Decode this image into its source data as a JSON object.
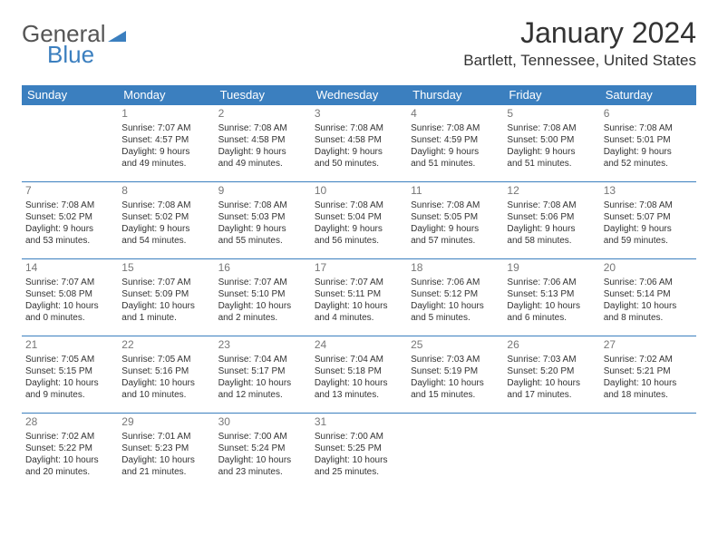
{
  "brand": {
    "part1": "General",
    "part2": "Blue",
    "tri_color": "#3b7fbf"
  },
  "colors": {
    "header_bg": "#3b7fbf",
    "header_fg": "#ffffff",
    "rule": "#3b7fbf",
    "text": "#333333",
    "muted": "#777777"
  },
  "title": "January 2024",
  "location": "Bartlett, Tennessee, United States",
  "weekdays": [
    "Sunday",
    "Monday",
    "Tuesday",
    "Wednesday",
    "Thursday",
    "Friday",
    "Saturday"
  ],
  "layout": {
    "first_weekday_offset": 1,
    "cols": 7,
    "rows": 5
  },
  "days": [
    {
      "n": "1",
      "sr": "Sunrise: 7:07 AM",
      "ss": "Sunset: 4:57 PM",
      "d1": "Daylight: 9 hours",
      "d2": "and 49 minutes."
    },
    {
      "n": "2",
      "sr": "Sunrise: 7:08 AM",
      "ss": "Sunset: 4:58 PM",
      "d1": "Daylight: 9 hours",
      "d2": "and 49 minutes."
    },
    {
      "n": "3",
      "sr": "Sunrise: 7:08 AM",
      "ss": "Sunset: 4:58 PM",
      "d1": "Daylight: 9 hours",
      "d2": "and 50 minutes."
    },
    {
      "n": "4",
      "sr": "Sunrise: 7:08 AM",
      "ss": "Sunset: 4:59 PM",
      "d1": "Daylight: 9 hours",
      "d2": "and 51 minutes."
    },
    {
      "n": "5",
      "sr": "Sunrise: 7:08 AM",
      "ss": "Sunset: 5:00 PM",
      "d1": "Daylight: 9 hours",
      "d2": "and 51 minutes."
    },
    {
      "n": "6",
      "sr": "Sunrise: 7:08 AM",
      "ss": "Sunset: 5:01 PM",
      "d1": "Daylight: 9 hours",
      "d2": "and 52 minutes."
    },
    {
      "n": "7",
      "sr": "Sunrise: 7:08 AM",
      "ss": "Sunset: 5:02 PM",
      "d1": "Daylight: 9 hours",
      "d2": "and 53 minutes."
    },
    {
      "n": "8",
      "sr": "Sunrise: 7:08 AM",
      "ss": "Sunset: 5:02 PM",
      "d1": "Daylight: 9 hours",
      "d2": "and 54 minutes."
    },
    {
      "n": "9",
      "sr": "Sunrise: 7:08 AM",
      "ss": "Sunset: 5:03 PM",
      "d1": "Daylight: 9 hours",
      "d2": "and 55 minutes."
    },
    {
      "n": "10",
      "sr": "Sunrise: 7:08 AM",
      "ss": "Sunset: 5:04 PM",
      "d1": "Daylight: 9 hours",
      "d2": "and 56 minutes."
    },
    {
      "n": "11",
      "sr": "Sunrise: 7:08 AM",
      "ss": "Sunset: 5:05 PM",
      "d1": "Daylight: 9 hours",
      "d2": "and 57 minutes."
    },
    {
      "n": "12",
      "sr": "Sunrise: 7:08 AM",
      "ss": "Sunset: 5:06 PM",
      "d1": "Daylight: 9 hours",
      "d2": "and 58 minutes."
    },
    {
      "n": "13",
      "sr": "Sunrise: 7:08 AM",
      "ss": "Sunset: 5:07 PM",
      "d1": "Daylight: 9 hours",
      "d2": "and 59 minutes."
    },
    {
      "n": "14",
      "sr": "Sunrise: 7:07 AM",
      "ss": "Sunset: 5:08 PM",
      "d1": "Daylight: 10 hours",
      "d2": "and 0 minutes."
    },
    {
      "n": "15",
      "sr": "Sunrise: 7:07 AM",
      "ss": "Sunset: 5:09 PM",
      "d1": "Daylight: 10 hours",
      "d2": "and 1 minute."
    },
    {
      "n": "16",
      "sr": "Sunrise: 7:07 AM",
      "ss": "Sunset: 5:10 PM",
      "d1": "Daylight: 10 hours",
      "d2": "and 2 minutes."
    },
    {
      "n": "17",
      "sr": "Sunrise: 7:07 AM",
      "ss": "Sunset: 5:11 PM",
      "d1": "Daylight: 10 hours",
      "d2": "and 4 minutes."
    },
    {
      "n": "18",
      "sr": "Sunrise: 7:06 AM",
      "ss": "Sunset: 5:12 PM",
      "d1": "Daylight: 10 hours",
      "d2": "and 5 minutes."
    },
    {
      "n": "19",
      "sr": "Sunrise: 7:06 AM",
      "ss": "Sunset: 5:13 PM",
      "d1": "Daylight: 10 hours",
      "d2": "and 6 minutes."
    },
    {
      "n": "20",
      "sr": "Sunrise: 7:06 AM",
      "ss": "Sunset: 5:14 PM",
      "d1": "Daylight: 10 hours",
      "d2": "and 8 minutes."
    },
    {
      "n": "21",
      "sr": "Sunrise: 7:05 AM",
      "ss": "Sunset: 5:15 PM",
      "d1": "Daylight: 10 hours",
      "d2": "and 9 minutes."
    },
    {
      "n": "22",
      "sr": "Sunrise: 7:05 AM",
      "ss": "Sunset: 5:16 PM",
      "d1": "Daylight: 10 hours",
      "d2": "and 10 minutes."
    },
    {
      "n": "23",
      "sr": "Sunrise: 7:04 AM",
      "ss": "Sunset: 5:17 PM",
      "d1": "Daylight: 10 hours",
      "d2": "and 12 minutes."
    },
    {
      "n": "24",
      "sr": "Sunrise: 7:04 AM",
      "ss": "Sunset: 5:18 PM",
      "d1": "Daylight: 10 hours",
      "d2": "and 13 minutes."
    },
    {
      "n": "25",
      "sr": "Sunrise: 7:03 AM",
      "ss": "Sunset: 5:19 PM",
      "d1": "Daylight: 10 hours",
      "d2": "and 15 minutes."
    },
    {
      "n": "26",
      "sr": "Sunrise: 7:03 AM",
      "ss": "Sunset: 5:20 PM",
      "d1": "Daylight: 10 hours",
      "d2": "and 17 minutes."
    },
    {
      "n": "27",
      "sr": "Sunrise: 7:02 AM",
      "ss": "Sunset: 5:21 PM",
      "d1": "Daylight: 10 hours",
      "d2": "and 18 minutes."
    },
    {
      "n": "28",
      "sr": "Sunrise: 7:02 AM",
      "ss": "Sunset: 5:22 PM",
      "d1": "Daylight: 10 hours",
      "d2": "and 20 minutes."
    },
    {
      "n": "29",
      "sr": "Sunrise: 7:01 AM",
      "ss": "Sunset: 5:23 PM",
      "d1": "Daylight: 10 hours",
      "d2": "and 21 minutes."
    },
    {
      "n": "30",
      "sr": "Sunrise: 7:00 AM",
      "ss": "Sunset: 5:24 PM",
      "d1": "Daylight: 10 hours",
      "d2": "and 23 minutes."
    },
    {
      "n": "31",
      "sr": "Sunrise: 7:00 AM",
      "ss": "Sunset: 5:25 PM",
      "d1": "Daylight: 10 hours",
      "d2": "and 25 minutes."
    }
  ]
}
